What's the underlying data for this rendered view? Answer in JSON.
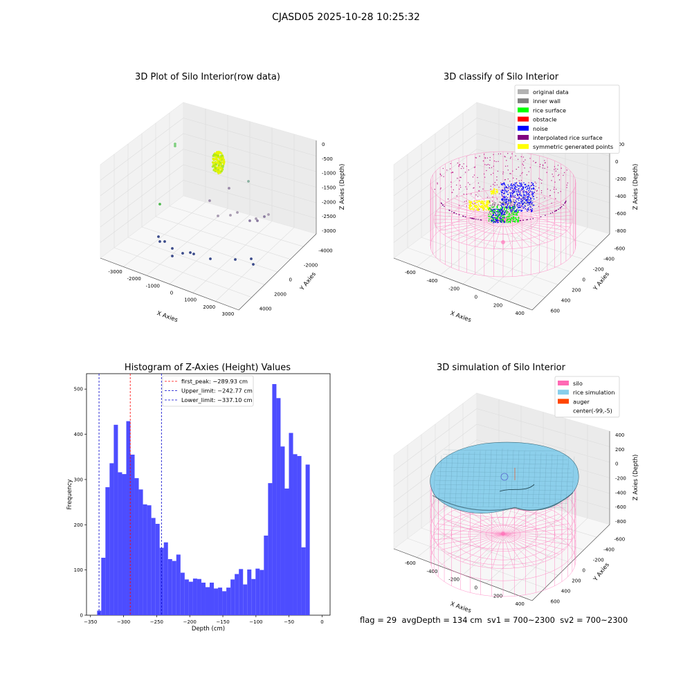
{
  "suptitle": "CJASD05 2025-10-28 10:25:32",
  "footer": "flag = 29  avgDepth = 134 cm  sv1 = 700~2300  sv2 = 700~2300",
  "colors": {
    "hist_bar": "#4d4dff",
    "first_peak": "#ff0000",
    "limit": "#0000cc",
    "silo": "#ff69b4",
    "rice_sim": "#87ceeb",
    "auger": "#ff4500",
    "original": "#b3b3b3",
    "inner_wall": "#808080",
    "rice_surface": "#00ff00",
    "obstacle": "#ff0000",
    "noise": "#0000ff",
    "interp": "#800080",
    "symmetric": "#ffff00"
  },
  "chart_data": [
    {
      "type": "scatter",
      "title": "3D Plot of Silo Interior(row data)",
      "xlabel": "X Axies",
      "ylabel": "Y Axies",
      "zlabel": "Z Axies (Depth)",
      "x_ticks": [
        "-3000",
        "-2000",
        "-1000",
        "0",
        "1000",
        "2000",
        "3000"
      ],
      "y_ticks": [
        "-4000",
        "-2000",
        "0",
        "2000",
        "4000"
      ],
      "z_ticks": [
        "0",
        "-500",
        "-1000",
        "-1500",
        "-2000",
        "-2500",
        "-3000"
      ]
    },
    {
      "type": "scatter",
      "title": "3D classify of Silo Interior",
      "xlabel": "X Axies",
      "ylabel": "Y Axies",
      "zlabel": "Z Axies (Depth)",
      "x_ticks": [
        "-600",
        "-400",
        "-200",
        "0",
        "200",
        "400"
      ],
      "y_ticks": [
        "-600",
        "-400",
        "-200",
        "0",
        "200",
        "400",
        "600"
      ],
      "z_ticks": [
        "200",
        "0",
        "-200",
        "-400",
        "-600",
        "-800"
      ],
      "legend": [
        "original data",
        "inner wall",
        "rice surface",
        "obstacle",
        "noise",
        "interpolated rice surface",
        "symmetric generated points"
      ]
    },
    {
      "type": "bar",
      "title": "Histogram of Z-Axies (Height) Values",
      "xlabel": "Depth (cm)",
      "ylabel": "Frequency",
      "xlim": [
        -350,
        0
      ],
      "ylim": [
        0,
        520
      ],
      "x_ticks": [
        -350,
        -300,
        -250,
        -200,
        -150,
        -100,
        -50,
        0
      ],
      "y_ticks": [
        0,
        100,
        200,
        300,
        400,
        500
      ],
      "bin_width": 6.3,
      "bin_start": -340.0,
      "values": [
        10,
        127,
        283,
        336,
        421,
        316,
        312,
        429,
        355,
        303,
        278,
        245,
        243,
        215,
        202,
        149,
        161,
        124,
        120,
        134,
        94,
        79,
        74,
        81,
        80,
        72,
        62,
        72,
        59,
        61,
        53,
        61,
        79,
        91,
        102,
        68,
        101,
        80,
        103,
        100,
        176,
        292,
        511,
        480,
        373,
        280,
        403,
        356,
        352,
        150,
        333
      ],
      "lines": [
        {
          "name": "first_peak: -289.93 cm",
          "value": -289.93
        },
        {
          "name": "Upper_limit: -242.77 cm",
          "value": -242.77
        },
        {
          "name": "Lower_limit: -337.10 cm",
          "value": -337.1
        }
      ]
    },
    {
      "type": "area",
      "title": "3D simulation of Silo Interior",
      "xlabel": "X Axies",
      "ylabel": "Y Axies",
      "zlabel": "Z Axies (Depth)",
      "x_ticks": [
        "-600",
        "-400",
        "-200",
        "0",
        "200",
        "400"
      ],
      "y_ticks": [
        "-600",
        "-400",
        "-200",
        "0",
        "200",
        "400",
        "600"
      ],
      "z_ticks": [
        "400",
        "200",
        "0",
        "-200",
        "-400",
        "-600",
        "-800"
      ],
      "legend": [
        "silo",
        "rice simulation",
        "auger",
        "center(-99,-5)"
      ]
    }
  ]
}
